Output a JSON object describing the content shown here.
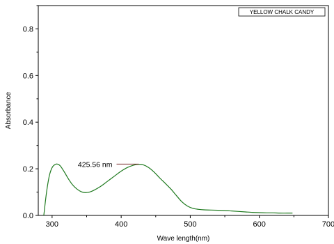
{
  "chart_data": {
    "type": "line",
    "xlabel": "Wave length(nm)",
    "ylabel": "Absorbance",
    "xlim": [
      280,
      700
    ],
    "ylim": [
      0.0,
      0.9
    ],
    "x_ticks": [
      {
        "value": 300,
        "label": "300"
      },
      {
        "value": 400,
        "label": "400"
      },
      {
        "value": 500,
        "label": "500"
      },
      {
        "value": 600,
        "label": "600"
      },
      {
        "value": 700,
        "label": "700"
      }
    ],
    "y_ticks": [
      {
        "value": 0.0,
        "label": "0.0"
      },
      {
        "value": 0.2,
        "label": "0.2"
      },
      {
        "value": 0.4,
        "label": "0.4"
      },
      {
        "value": 0.6,
        "label": "0.6"
      },
      {
        "value": 0.8,
        "label": "0.8"
      }
    ],
    "grid": false,
    "legend": {
      "position": "top-right",
      "entries": [
        "YELLOW CHALK CANDY"
      ]
    },
    "series": [
      {
        "name": "YELLOW CHALK CANDY",
        "color": "#1f7a1f",
        "x": [
          288,
          292,
          296,
          300,
          304,
          308,
          312,
          318,
          324,
          330,
          336,
          342,
          348,
          354,
          360,
          370,
          380,
          390,
          400,
          410,
          420,
          425.56,
          432,
          440,
          448,
          456,
          464,
          472,
          480,
          488,
          496,
          504,
          512,
          520,
          530,
          540,
          550,
          560,
          570,
          580,
          590,
          600,
          610,
          620,
          630,
          640,
          648
        ],
        "y": [
          0.0,
          0.1,
          0.17,
          0.205,
          0.218,
          0.22,
          0.212,
          0.185,
          0.155,
          0.13,
          0.113,
          0.102,
          0.098,
          0.1,
          0.107,
          0.124,
          0.146,
          0.168,
          0.19,
          0.207,
          0.217,
          0.219,
          0.217,
          0.205,
          0.185,
          0.16,
          0.137,
          0.113,
          0.085,
          0.058,
          0.04,
          0.03,
          0.026,
          0.024,
          0.023,
          0.022,
          0.021,
          0.019,
          0.017,
          0.015,
          0.013,
          0.012,
          0.011,
          0.011,
          0.01,
          0.01,
          0.01
        ]
      }
    ],
    "annotations": [
      {
        "text": "425.56 nm",
        "x": 425.56,
        "y": 0.22
      }
    ]
  }
}
